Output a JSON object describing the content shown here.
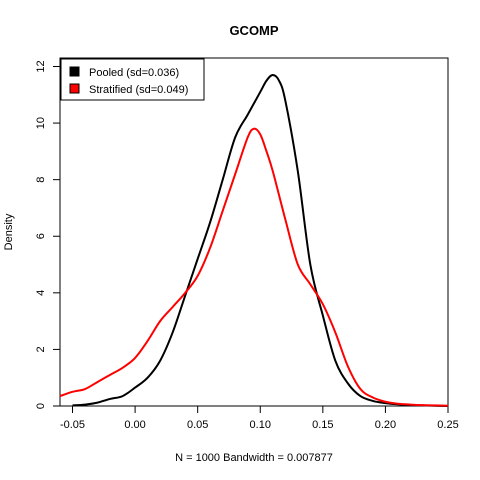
{
  "chart_data": {
    "type": "line",
    "title": "GCOMP",
    "xlabel": "N = 1000   Bandwidth = 0.007877",
    "ylabel": "Density",
    "xlim": [
      -0.06,
      0.25
    ],
    "ylim": [
      0,
      12.3
    ],
    "x_ticks": [
      "-0.05",
      "0.00",
      "0.05",
      "0.10",
      "0.15",
      "0.20",
      "0.25"
    ],
    "y_ticks": [
      "0",
      "2",
      "4",
      "6",
      "8",
      "10",
      "12"
    ],
    "legend_position": "top-left",
    "series": [
      {
        "name": "Pooled (sd=0.036)",
        "color": "#000000",
        "x": [
          -0.05,
          -0.04,
          -0.03,
          -0.02,
          -0.01,
          0.0,
          0.01,
          0.02,
          0.03,
          0.04,
          0.05,
          0.06,
          0.07,
          0.08,
          0.09,
          0.1,
          0.105,
          0.11,
          0.115,
          0.12,
          0.13,
          0.14,
          0.15,
          0.16,
          0.17,
          0.18,
          0.19,
          0.2,
          0.21,
          0.22,
          0.23,
          0.24,
          0.25
        ],
        "y": [
          0.02,
          0.05,
          0.12,
          0.25,
          0.35,
          0.65,
          1.0,
          1.6,
          2.6,
          3.9,
          5.2,
          6.5,
          8.0,
          9.5,
          10.3,
          11.1,
          11.5,
          11.7,
          11.5,
          10.8,
          8.3,
          5.0,
          3.2,
          1.6,
          0.8,
          0.35,
          0.18,
          0.1,
          0.06,
          0.04,
          0.02,
          0.01,
          0.0
        ]
      },
      {
        "name": "Stratified (sd=0.049)",
        "color": "#ff0000",
        "x": [
          -0.06,
          -0.05,
          -0.04,
          -0.03,
          -0.02,
          -0.01,
          0.0,
          0.01,
          0.02,
          0.03,
          0.04,
          0.05,
          0.06,
          0.07,
          0.08,
          0.09,
          0.095,
          0.1,
          0.105,
          0.11,
          0.12,
          0.13,
          0.14,
          0.15,
          0.16,
          0.17,
          0.18,
          0.19,
          0.2,
          0.21,
          0.22,
          0.23,
          0.24,
          0.25
        ],
        "y": [
          0.35,
          0.5,
          0.6,
          0.85,
          1.1,
          1.35,
          1.7,
          2.3,
          3.0,
          3.5,
          4.0,
          4.6,
          5.6,
          6.9,
          8.2,
          9.5,
          9.8,
          9.6,
          9.0,
          8.3,
          6.6,
          5.0,
          4.3,
          3.6,
          2.6,
          1.4,
          0.6,
          0.3,
          0.15,
          0.08,
          0.05,
          0.03,
          0.02,
          0.01
        ]
      }
    ]
  }
}
